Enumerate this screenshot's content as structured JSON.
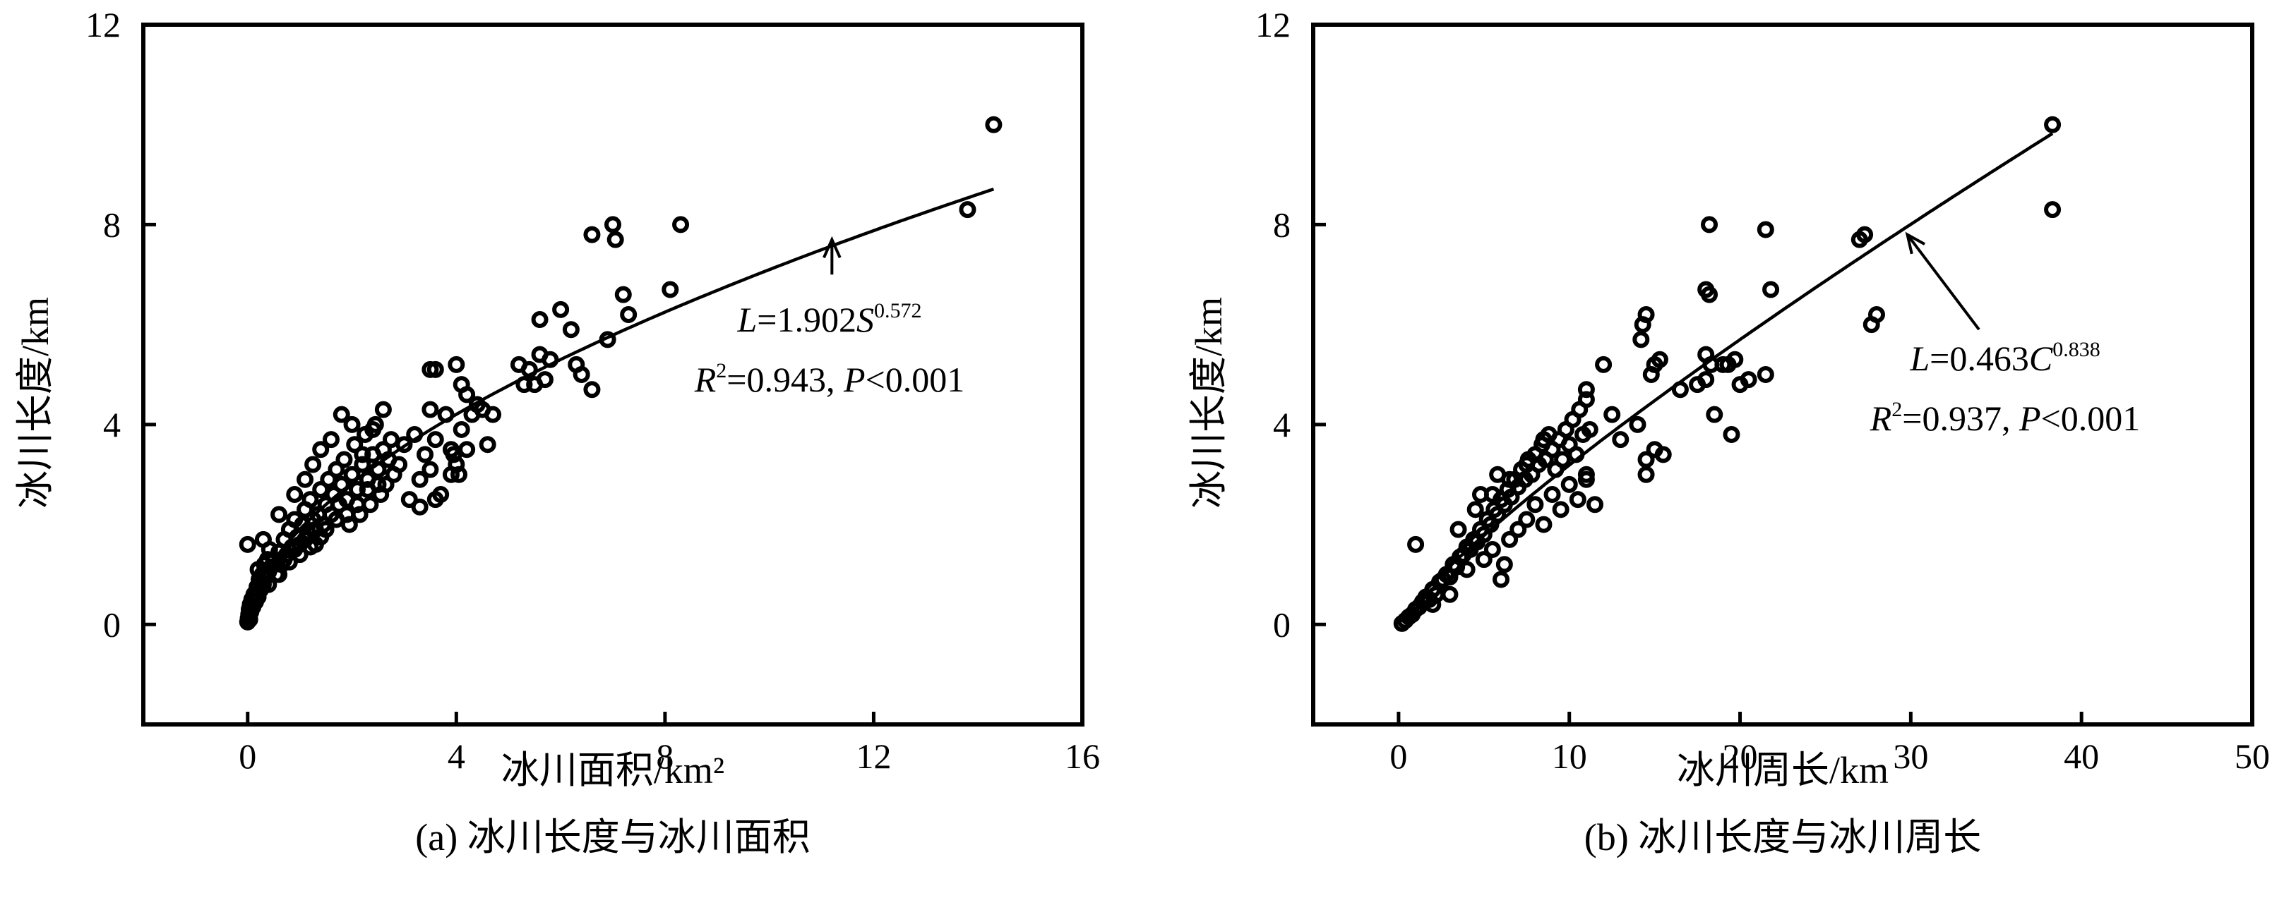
{
  "chart_data": [
    {
      "type": "scatter",
      "xlabel": "冰川面积/km²",
      "ylabel": "冰川长度/km",
      "caption": "(a) 冰川长度与冰川面积",
      "xlim": [
        -2,
        16
      ],
      "ylim": [
        -2,
        12
      ],
      "xticks": [
        0,
        4,
        8,
        12,
        16
      ],
      "yticks": [
        0,
        4,
        8,
        12
      ],
      "grid": false,
      "fit": {
        "type": "power",
        "a": 1.902,
        "b": 0.572,
        "x_range": [
          0,
          14.3
        ]
      },
      "equation": {
        "line1_prefix": "L",
        "line1_mid": "=1.902",
        "line1_var": "S",
        "line1_exp": "0.572",
        "line2_prefix": "R",
        "line2_exp": "2",
        "line2_mid": "=0.943, ",
        "line2_var": "P",
        "line2_suffix": "<0.001"
      },
      "annotation_arrow": {
        "from": [
          11.2,
          7.0
        ],
        "to": [
          11.2,
          7.7
        ]
      },
      "points": [
        [
          0.0,
          0.05
        ],
        [
          0.01,
          0.12
        ],
        [
          0.02,
          0.2
        ],
        [
          0.03,
          0.3
        ],
        [
          0.04,
          0.1
        ],
        [
          0.05,
          0.4
        ],
        [
          0.06,
          0.25
        ],
        [
          0.08,
          0.5
        ],
        [
          0.1,
          0.35
        ],
        [
          0.12,
          0.6
        ],
        [
          0.15,
          0.45
        ],
        [
          0.18,
          0.75
        ],
        [
          0.2,
          0.55
        ],
        [
          0.22,
          0.9
        ],
        [
          0.25,
          0.7
        ],
        [
          0.28,
          1.0
        ],
        [
          0.3,
          0.8
        ],
        [
          0.32,
          1.2
        ],
        [
          0.35,
          0.95
        ],
        [
          0.38,
          1.3
        ],
        [
          0.4,
          1.05
        ],
        [
          0.42,
          1.5
        ],
        [
          0.45,
          1.15
        ],
        [
          0.5,
          1.3
        ],
        [
          0.55,
          1.0
        ],
        [
          0.6,
          1.45
        ],
        [
          0.65,
          1.2
        ],
        [
          0.7,
          1.7
        ],
        [
          0.75,
          1.4
        ],
        [
          0.8,
          1.9
        ],
        [
          0.85,
          1.55
        ],
        [
          0.9,
          2.1
        ],
        [
          0.95,
          1.75
        ],
        [
          1.0,
          1.6
        ],
        [
          1.05,
          2.0
        ],
        [
          1.1,
          2.3
        ],
        [
          1.15,
          1.85
        ],
        [
          1.2,
          2.5
        ],
        [
          1.25,
          2.1
        ],
        [
          1.3,
          1.9
        ],
        [
          1.35,
          2.2
        ],
        [
          1.4,
          2.7
        ],
        [
          1.45,
          2.0
        ],
        [
          1.5,
          2.4
        ],
        [
          1.55,
          2.9
        ],
        [
          1.6,
          2.2
        ],
        [
          1.65,
          2.6
        ],
        [
          1.7,
          3.1
        ],
        [
          1.75,
          2.4
        ],
        [
          1.8,
          2.8
        ],
        [
          1.85,
          3.3
        ],
        [
          1.9,
          2.5
        ],
        [
          1.95,
          2.0
        ],
        [
          2.0,
          3.0
        ],
        [
          2.05,
          3.6
        ],
        [
          2.1,
          2.7
        ],
        [
          2.15,
          2.2
        ],
        [
          2.2,
          3.2
        ],
        [
          2.25,
          3.8
        ],
        [
          2.3,
          2.9
        ],
        [
          2.35,
          2.4
        ],
        [
          2.4,
          3.4
        ],
        [
          2.45,
          4.0
        ],
        [
          2.5,
          3.1
        ],
        [
          2.55,
          2.6
        ],
        [
          2.6,
          3.5
        ],
        [
          2.65,
          2.8
        ],
        [
          2.7,
          3.3
        ],
        [
          2.75,
          3.7
        ],
        [
          2.8,
          3.0
        ],
        [
          0.0,
          1.6
        ],
        [
          0.3,
          1.7
        ],
        [
          0.6,
          2.2
        ],
        [
          0.9,
          2.6
        ],
        [
          1.1,
          2.9
        ],
        [
          1.25,
          3.2
        ],
        [
          1.4,
          3.5
        ],
        [
          1.6,
          3.7
        ],
        [
          1.8,
          4.2
        ],
        [
          2.0,
          4.0
        ],
        [
          2.2,
          3.4
        ],
        [
          2.4,
          3.9
        ],
        [
          2.6,
          4.3
        ],
        [
          0.7,
          1.3
        ],
        [
          0.9,
          1.5
        ],
        [
          1.1,
          1.7
        ],
        [
          1.3,
          1.6
        ],
        [
          1.5,
          1.9
        ],
        [
          1.7,
          2.1
        ],
        [
          1.9,
          2.2
        ],
        [
          2.1,
          2.4
        ],
        [
          2.3,
          2.7
        ],
        [
          2.5,
          2.8
        ],
        [
          0.2,
          1.1
        ],
        [
          0.4,
          0.8
        ],
        [
          0.6,
          1.0
        ],
        [
          0.8,
          1.25
        ],
        [
          1.0,
          1.4
        ],
        [
          1.2,
          1.55
        ],
        [
          1.4,
          1.75
        ],
        [
          2.9,
          3.2
        ],
        [
          3.0,
          3.6
        ],
        [
          3.1,
          2.5
        ],
        [
          3.2,
          3.8
        ],
        [
          3.3,
          2.9
        ],
        [
          3.4,
          3.4
        ],
        [
          3.5,
          3.1
        ],
        [
          3.6,
          3.7
        ],
        [
          3.7,
          2.6
        ],
        [
          3.8,
          4.2
        ],
        [
          3.9,
          3.5
        ],
        [
          4.0,
          3.2
        ],
        [
          4.1,
          3.9
        ],
        [
          4.2,
          3.5
        ],
        [
          3.5,
          4.3
        ],
        [
          3.5,
          5.1
        ],
        [
          3.6,
          5.1
        ],
        [
          4.0,
          5.2
        ],
        [
          4.1,
          4.8
        ],
        [
          4.2,
          4.6
        ],
        [
          4.3,
          4.2
        ],
        [
          4.4,
          4.4
        ],
        [
          4.6,
          3.6
        ],
        [
          4.5,
          4.3
        ],
        [
          4.7,
          4.2
        ],
        [
          3.3,
          2.35
        ],
        [
          3.6,
          2.5
        ],
        [
          3.9,
          3.0
        ],
        [
          3.95,
          3.4
        ],
        [
          4.05,
          3.0
        ],
        [
          5.2,
          5.2
        ],
        [
          5.3,
          4.8
        ],
        [
          5.4,
          5.1
        ],
        [
          5.5,
          4.8
        ],
        [
          5.6,
          5.4
        ],
        [
          5.7,
          4.9
        ],
        [
          5.8,
          5.3
        ],
        [
          6.0,
          6.3
        ],
        [
          5.6,
          6.1
        ],
        [
          6.2,
          5.9
        ],
        [
          6.3,
          5.2
        ],
        [
          6.4,
          5.0
        ],
        [
          6.6,
          4.7
        ],
        [
          6.9,
          5.7
        ],
        [
          6.6,
          7.8
        ],
        [
          7.0,
          8.0
        ],
        [
          7.05,
          7.7
        ],
        [
          7.2,
          6.6
        ],
        [
          7.3,
          6.2
        ],
        [
          8.3,
          8.0
        ],
        [
          8.1,
          6.7
        ],
        [
          13.8,
          8.3
        ],
        [
          14.3,
          10.0
        ]
      ]
    },
    {
      "type": "scatter",
      "xlabel": "冰川周长/km",
      "ylabel": "冰川长度/km",
      "caption": "(b) 冰川长度与冰川周长",
      "xlim": [
        -5,
        50
      ],
      "ylim": [
        -2,
        12
      ],
      "xticks": [
        0,
        10,
        20,
        30,
        40,
        50
      ],
      "yticks": [
        0,
        4,
        8,
        12
      ],
      "grid": false,
      "fit": {
        "type": "power",
        "a": 0.463,
        "b": 0.838,
        "x_range": [
          0,
          38.3
        ]
      },
      "equation": {
        "line1_prefix": "L",
        "line1_mid": "=0.463",
        "line1_var": "C",
        "line1_exp": "0.838",
        "line2_prefix": "R",
        "line2_exp": "2",
        "line2_mid": "=0.937, ",
        "line2_var": "P",
        "line2_suffix": "<0.001"
      },
      "annotation_arrow": {
        "from": [
          34.0,
          5.9
        ],
        "to": [
          29.8,
          7.8
        ]
      },
      "points": [
        [
          0.2,
          0.02
        ],
        [
          0.4,
          0.08
        ],
        [
          0.6,
          0.15
        ],
        [
          0.8,
          0.2
        ],
        [
          1.0,
          0.3
        ],
        [
          1.2,
          0.35
        ],
        [
          1.4,
          0.45
        ],
        [
          1.6,
          0.55
        ],
        [
          1.8,
          0.5
        ],
        [
          2.0,
          0.7
        ],
        [
          2.2,
          0.6
        ],
        [
          2.4,
          0.85
        ],
        [
          2.6,
          0.9
        ],
        [
          2.8,
          1.0
        ],
        [
          3.0,
          0.95
        ],
        [
          3.2,
          1.2
        ],
        [
          3.4,
          1.15
        ],
        [
          3.6,
          1.35
        ],
        [
          3.8,
          1.4
        ],
        [
          4.0,
          1.55
        ],
        [
          4.2,
          1.5
        ],
        [
          4.4,
          1.7
        ],
        [
          4.6,
          1.65
        ],
        [
          4.8,
          1.9
        ],
        [
          5.0,
          1.8
        ],
        [
          5.2,
          2.1
        ],
        [
          5.4,
          2.0
        ],
        [
          5.6,
          2.3
        ],
        [
          5.8,
          2.2
        ],
        [
          6.0,
          2.5
        ],
        [
          6.2,
          2.4
        ],
        [
          6.4,
          2.7
        ],
        [
          6.6,
          2.55
        ],
        [
          6.8,
          2.9
        ],
        [
          7.0,
          2.75
        ],
        [
          7.2,
          3.1
        ],
        [
          7.4,
          2.9
        ],
        [
          7.6,
          3.3
        ],
        [
          7.8,
          3.0
        ],
        [
          8.0,
          3.4
        ],
        [
          8.2,
          3.2
        ],
        [
          8.4,
          3.6
        ],
        [
          8.6,
          3.3
        ],
        [
          8.8,
          3.8
        ],
        [
          9.0,
          3.5
        ],
        [
          9.2,
          3.1
        ],
        [
          9.4,
          3.7
        ],
        [
          9.6,
          3.3
        ],
        [
          9.8,
          3.9
        ],
        [
          10.0,
          3.6
        ],
        [
          10.2,
          4.1
        ],
        [
          10.4,
          3.4
        ],
        [
          10.6,
          4.3
        ],
        [
          10.8,
          3.8
        ],
        [
          11.0,
          4.5
        ],
        [
          11.2,
          3.9
        ],
        [
          1.0,
          1.6
        ],
        [
          2.0,
          0.4
        ],
        [
          3.0,
          0.6
        ],
        [
          4.0,
          1.1
        ],
        [
          5.0,
          1.3
        ],
        [
          5.5,
          1.5
        ],
        [
          6.0,
          0.9
        ],
        [
          6.2,
          1.2
        ],
        [
          6.5,
          1.7
        ],
        [
          7.0,
          1.9
        ],
        [
          7.5,
          2.1
        ],
        [
          8.0,
          2.4
        ],
        [
          8.5,
          2.0
        ],
        [
          9.0,
          2.6
        ],
        [
          9.5,
          2.3
        ],
        [
          10.0,
          2.8
        ],
        [
          10.5,
          2.5
        ],
        [
          11.0,
          3.0
        ],
        [
          11.5,
          2.4
        ],
        [
          11.0,
          2.9
        ],
        [
          3.5,
          1.9
        ],
        [
          4.5,
          2.3
        ],
        [
          5.5,
          2.6
        ],
        [
          6.5,
          2.9
        ],
        [
          7.5,
          3.2
        ],
        [
          8.5,
          3.7
        ],
        [
          4.8,
          2.6
        ],
        [
          5.8,
          3.0
        ],
        [
          12.0,
          5.2
        ],
        [
          11.0,
          4.7
        ],
        [
          12.5,
          4.2
        ],
        [
          13.0,
          3.7
        ],
        [
          14.0,
          4.0
        ],
        [
          14.2,
          5.7
        ],
        [
          14.5,
          6.2
        ],
        [
          14.3,
          6.0
        ],
        [
          15.0,
          5.2
        ],
        [
          15.3,
          5.3
        ],
        [
          14.8,
          5.0
        ],
        [
          14.5,
          3.0
        ],
        [
          14.5,
          3.3
        ],
        [
          15.0,
          3.5
        ],
        [
          15.5,
          3.4
        ],
        [
          16.5,
          4.7
        ],
        [
          17.5,
          4.8
        ],
        [
          18.0,
          4.9
        ],
        [
          18.0,
          5.4
        ],
        [
          18.3,
          5.2
        ],
        [
          18.5,
          4.2
        ],
        [
          18.2,
          6.6
        ],
        [
          18.0,
          6.7
        ],
        [
          18.2,
          8.0
        ],
        [
          19.0,
          5.2
        ],
        [
          19.3,
          5.2
        ],
        [
          19.7,
          5.3
        ],
        [
          19.5,
          3.8
        ],
        [
          20.0,
          4.8
        ],
        [
          20.5,
          4.9
        ],
        [
          21.5,
          5.0
        ],
        [
          21.5,
          7.9
        ],
        [
          21.8,
          6.7
        ],
        [
          27.0,
          7.7
        ],
        [
          27.3,
          7.8
        ],
        [
          27.7,
          6.0
        ],
        [
          28.0,
          6.2
        ],
        [
          38.3,
          10.0
        ],
        [
          38.3,
          8.3
        ]
      ]
    }
  ]
}
